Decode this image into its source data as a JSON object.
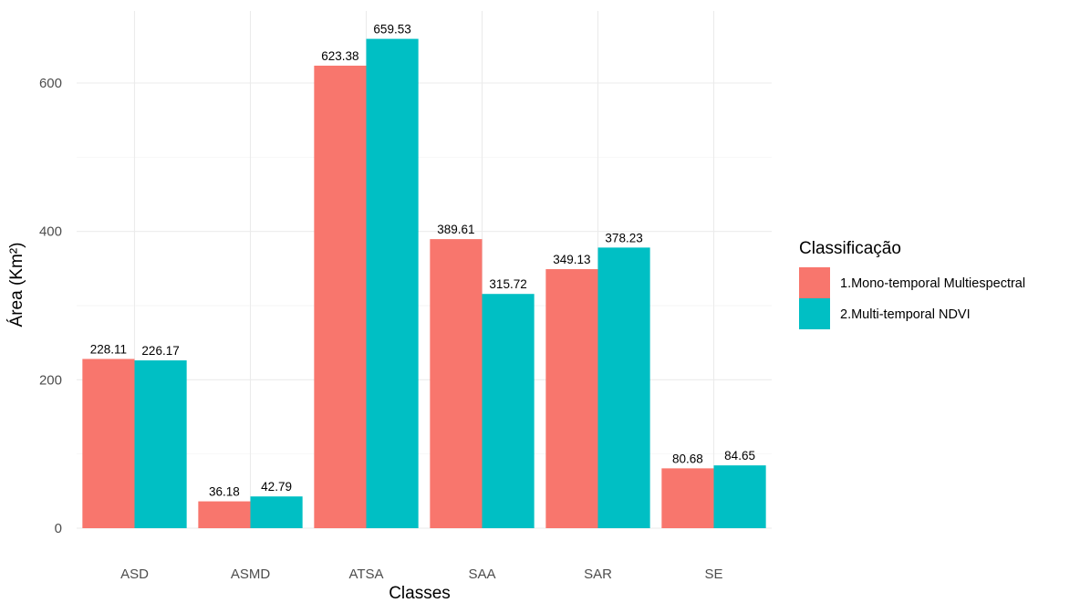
{
  "chart_data": {
    "type": "bar",
    "title": "",
    "xlabel": "Classes",
    "ylabel": "Área (Km²)",
    "categories": [
      "ASD",
      "ASMD",
      "ATSA",
      "SAA",
      "SAR",
      "SE"
    ],
    "series": [
      {
        "name": "1.Mono-temporal Multiespectral",
        "color": "#F8766D",
        "values": [
          228.11,
          36.18,
          623.38,
          389.61,
          349.13,
          80.68
        ],
        "labels": [
          "228.11",
          "36.18",
          "623.38",
          "389.61",
          "349.13",
          "80.68"
        ]
      },
      {
        "name": "2.Multi-temporal NDVI",
        "color": "#00BFC4",
        "values": [
          226.17,
          42.79,
          659.53,
          315.72,
          378.23,
          84.65
        ],
        "labels": [
          "226.17",
          "42.79",
          "659.53",
          "315.72",
          "378.23",
          "84.65"
        ]
      }
    ],
    "ylim": [
      0,
      660
    ],
    "yticks": [
      0,
      200,
      400,
      600
    ],
    "ytick_labels": [
      "0",
      "200",
      "400",
      "600"
    ],
    "grid": true,
    "legend": {
      "title": "Classificação",
      "position": "right"
    }
  }
}
